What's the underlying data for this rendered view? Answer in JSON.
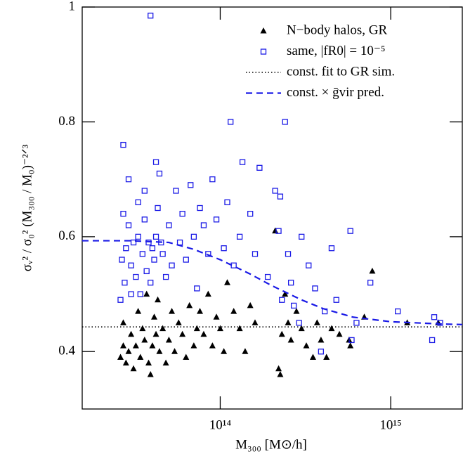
{
  "chart_data": {
    "type": "scatter",
    "x_label": "M₃₀₀ [M⊙/h]",
    "y_label": "σᵥ² / σ₀² (M₃₀₀ / M₀)⁻²ᐟ³",
    "xscale": "log",
    "xlim": [
      15500000000000.0,
      2630000000000000.0
    ],
    "ylim": [
      0.3,
      1.0
    ],
    "xticks": [
      {
        "value": 100000000000000.0,
        "label": "10¹⁴"
      },
      {
        "value": 1000000000000000.0,
        "label": "10¹⁵"
      }
    ],
    "yticks": [
      0.4,
      0.6,
      0.8,
      1
    ],
    "legend": "upper right",
    "series": [
      {
        "name": "N−body halos, GR",
        "color": "#000000",
        "marker": "triangle",
        "x": [
          26000000000000.0,
          27000000000000.0,
          28000000000000.0,
          27000000000000.0,
          29000000000000.0,
          30000000000000.0,
          31000000000000.0,
          32000000000000.0,
          33000000000000.0,
          34000000000000.0,
          35000000000000.0,
          36000000000000.0,
          37000000000000.0,
          38000000000000.0,
          39000000000000.0,
          40000000000000.0,
          41000000000000.0,
          42000000000000.0,
          43000000000000.0,
          44000000000000.0,
          46000000000000.0,
          48000000000000.0,
          50000000000000.0,
          52000000000000.0,
          54000000000000.0,
          57000000000000.0,
          60000000000000.0,
          63000000000000.0,
          66000000000000.0,
          70000000000000.0,
          73000000000000.0,
          76000000000000.0,
          80000000000000.0,
          85000000000000.0,
          90000000000000.0,
          95000000000000.0,
          100000000000000.0,
          105000000000000.0,
          110000000000000.0,
          120000000000000.0,
          130000000000000.0,
          140000000000000.0,
          150000000000000.0,
          160000000000000.0,
          210000000000000.0,
          220000000000000.0,
          225000000000000.0,
          230000000000000.0,
          240000000000000.0,
          250000000000000.0,
          260000000000000.0,
          280000000000000.0,
          300000000000000.0,
          320000000000000.0,
          350000000000000.0,
          370000000000000.0,
          390000000000000.0,
          420000000000000.0,
          450000000000000.0,
          500000000000000.0,
          570000000000000.0,
          580000000000000.0,
          700000000000000.0,
          780000000000000.0,
          1250000000000000.0,
          1900000000000000.0
        ],
        "values": [
          0.39,
          0.41,
          0.38,
          0.45,
          0.4,
          0.43,
          0.37,
          0.41,
          0.47,
          0.39,
          0.44,
          0.42,
          0.5,
          0.38,
          0.36,
          0.41,
          0.46,
          0.43,
          0.49,
          0.4,
          0.44,
          0.38,
          0.42,
          0.47,
          0.4,
          0.45,
          0.43,
          0.39,
          0.48,
          0.41,
          0.44,
          0.47,
          0.43,
          0.5,
          0.41,
          0.46,
          0.44,
          0.4,
          0.52,
          0.47,
          0.44,
          0.4,
          0.48,
          0.45,
          0.61,
          0.37,
          0.36,
          0.43,
          0.5,
          0.45,
          0.42,
          0.47,
          0.44,
          0.41,
          0.39,
          0.45,
          0.42,
          0.39,
          0.44,
          0.43,
          0.42,
          0.41,
          0.46,
          0.54,
          0.45,
          0.45
        ]
      },
      {
        "name": "same, |fR0| = 10⁻⁵",
        "color": "#1a1ae6",
        "marker": "square",
        "x": [
          26000000000000.0,
          26500000000000.0,
          27000000000000.0,
          27000000000000.0,
          27500000000000.0,
          28000000000000.0,
          29000000000000.0,
          29000000000000.0,
          30000000000000.0,
          30000000000000.0,
          31000000000000.0,
          32000000000000.0,
          33000000000000.0,
          33000000000000.0,
          34000000000000.0,
          35000000000000.0,
          36000000000000.0,
          36000000000000.0,
          37000000000000.0,
          38000000000000.0,
          39000000000000.0,
          39000000000000.0,
          40000000000000.0,
          41000000000000.0,
          42000000000000.0,
          42000000000000.0,
          43000000000000.0,
          44000000000000.0,
          45000000000000.0,
          46000000000000.0,
          48000000000000.0,
          50000000000000.0,
          52000000000000.0,
          55000000000000.0,
          58000000000000.0,
          60000000000000.0,
          63000000000000.0,
          67000000000000.0,
          70000000000000.0,
          73000000000000.0,
          76000000000000.0,
          80000000000000.0,
          85000000000000.0,
          90000000000000.0,
          95000000000000.0,
          105000000000000.0,
          110000000000000.0,
          115000000000000.0,
          120000000000000.0,
          130000000000000.0,
          135000000000000.0,
          150000000000000.0,
          160000000000000.0,
          170000000000000.0,
          190000000000000.0,
          210000000000000.0,
          220000000000000.0,
          225000000000000.0,
          230000000000000.0,
          240000000000000.0,
          250000000000000.0,
          260000000000000.0,
          270000000000000.0,
          290000000000000.0,
          300000000000000.0,
          330000000000000.0,
          360000000000000.0,
          390000000000000.0,
          410000000000000.0,
          450000000000000.0,
          480000000000000.0,
          580000000000000.0,
          590000000000000.0,
          630000000000000.0,
          760000000000000.0,
          1100000000000000.0,
          1750000000000000.0,
          1800000000000000.0,
          1950000000000000.0
        ],
        "values": [
          0.49,
          0.56,
          0.64,
          0.76,
          0.52,
          0.58,
          0.62,
          0.7,
          0.5,
          0.55,
          0.59,
          0.53,
          0.6,
          0.66,
          0.5,
          0.57,
          0.63,
          0.68,
          0.54,
          0.59,
          0.52,
          0.985,
          0.58,
          0.56,
          0.6,
          0.73,
          0.65,
          0.71,
          0.59,
          0.57,
          0.53,
          0.62,
          0.55,
          0.68,
          0.59,
          0.64,
          0.56,
          0.69,
          0.6,
          0.51,
          0.65,
          0.62,
          0.57,
          0.7,
          0.63,
          0.58,
          0.66,
          0.8,
          0.55,
          0.6,
          0.73,
          0.64,
          0.57,
          0.72,
          0.53,
          0.68,
          0.61,
          0.67,
          0.49,
          0.8,
          0.57,
          0.52,
          0.48,
          0.45,
          0.6,
          0.55,
          0.51,
          0.4,
          0.47,
          0.58,
          0.49,
          0.61,
          0.42,
          0.45,
          0.52,
          0.47,
          0.42,
          0.46,
          0.45
        ]
      },
      {
        "name": "const. fit to GR sim.",
        "color": "#000000",
        "linestyle": "dotted",
        "x": [
          15500000000000.0,
          2630000000000000.0
        ],
        "values": [
          0.443,
          0.443
        ]
      },
      {
        "name": "const. × ḡvir pred.",
        "color": "#1a1ae6",
        "linestyle": "dashed",
        "x": [
          15500000000000.0,
          30000000000000.0,
          50000000000000.0,
          70000000000000.0,
          100000000000000.0,
          150000000000000.0,
          200000000000000.0,
          300000000000000.0,
          400000000000000.0,
          600000000000000.0,
          1000000000000000.0,
          2000000000000000.0,
          2630000000000000.0
        ],
        "values": [
          0.593,
          0.593,
          0.59,
          0.578,
          0.56,
          0.535,
          0.515,
          0.49,
          0.475,
          0.46,
          0.452,
          0.448,
          0.447
        ]
      }
    ]
  }
}
